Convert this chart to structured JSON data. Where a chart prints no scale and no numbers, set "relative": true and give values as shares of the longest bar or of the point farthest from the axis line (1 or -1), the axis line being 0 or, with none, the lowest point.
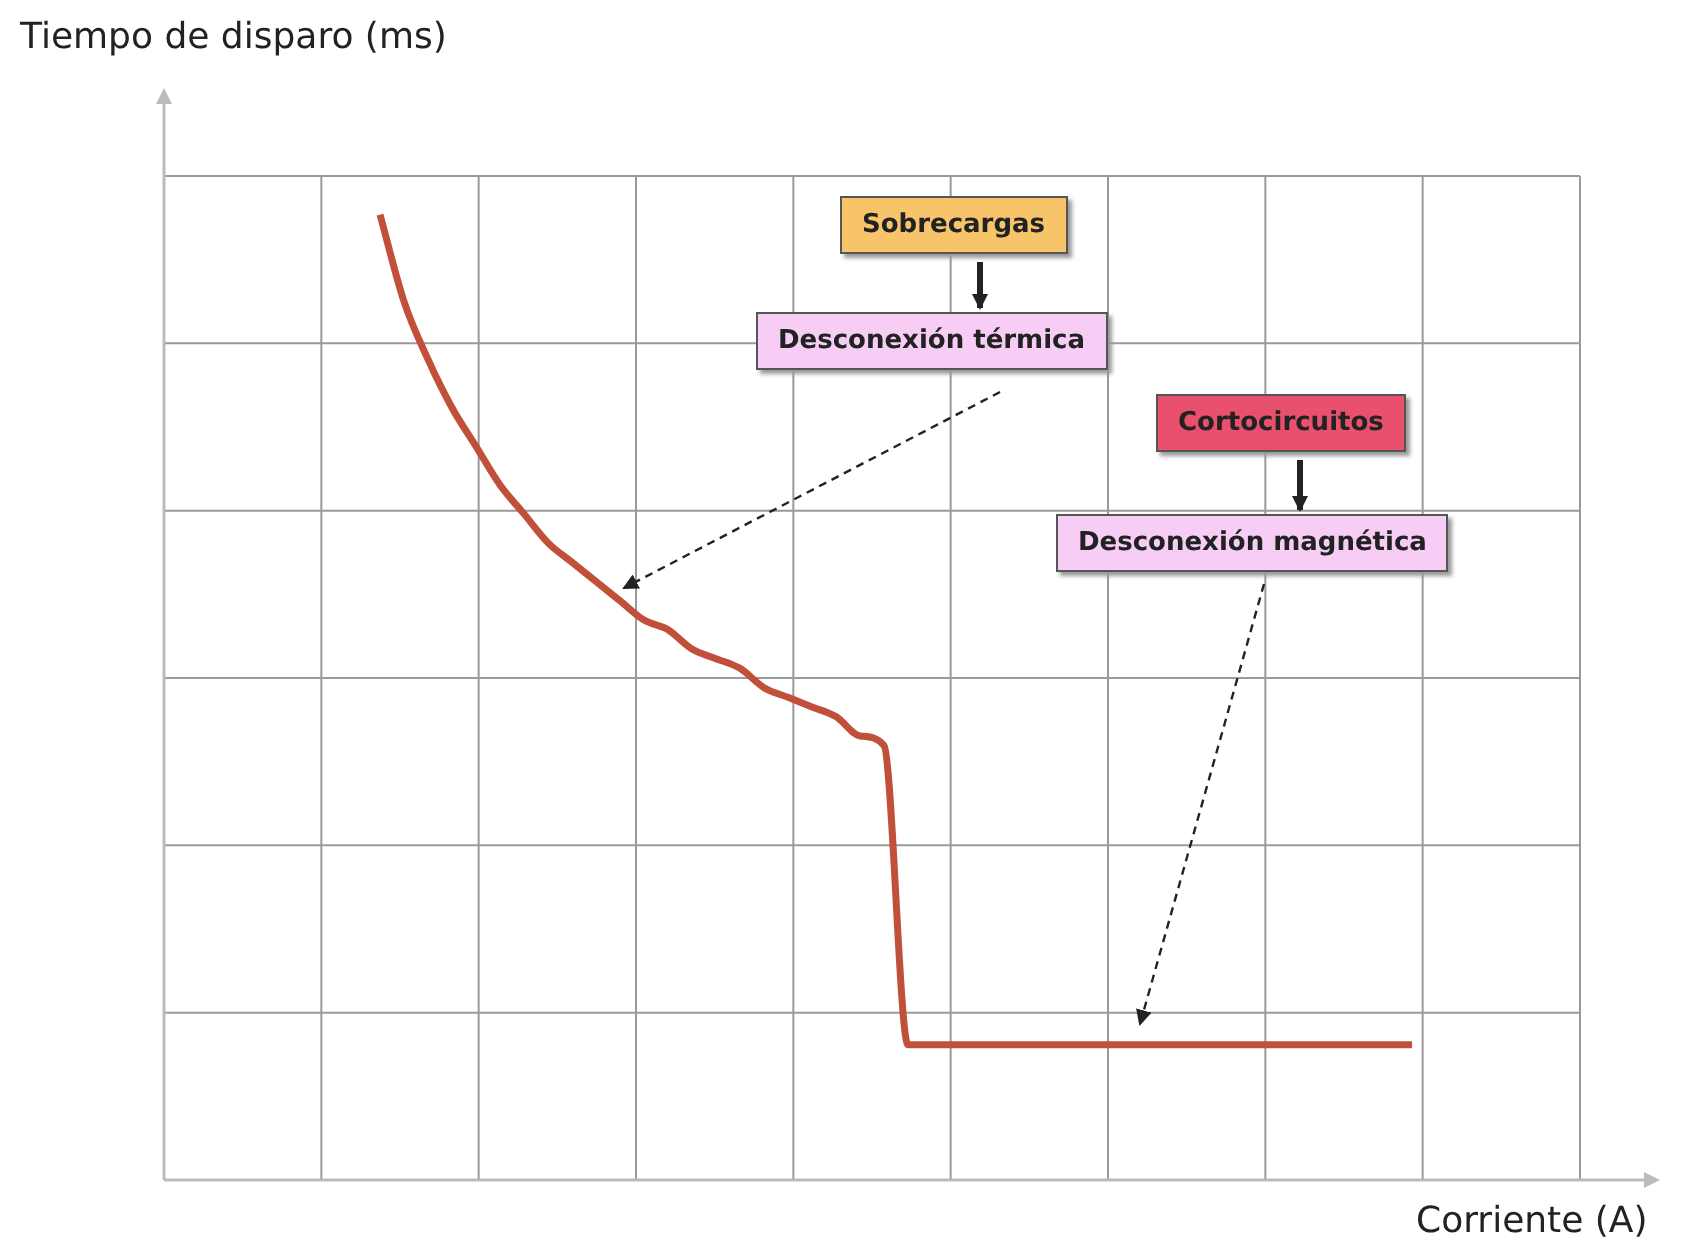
{
  "chart_data": {
    "type": "line",
    "xlabel": "Corriente (A)",
    "ylabel": "Tiempo de disparo (ms)",
    "relative": true,
    "grid": true,
    "categories": [
      null,
      null,
      null,
      null,
      null,
      null,
      null,
      null,
      null,
      null,
      null,
      null,
      null,
      null,
      null,
      null,
      null,
      null,
      null,
      null,
      null,
      null,
      null,
      null,
      null,
      null,
      null,
      null,
      null,
      null,
      null,
      null,
      null,
      null,
      null,
      null,
      null,
      null,
      null,
      null,
      null,
      null,
      null,
      null,
      null,
      null,
      null,
      null,
      null,
      null,
      null,
      null,
      null,
      null,
      null,
      null,
      null,
      null,
      null,
      null
    ],
    "series": [
      {
        "color": "#c0503a",
        "values": [
          null,
          null,
          null,
          null,
          null,
          null,
          null,
          null,
          null,
          1.0,
          0.91,
          0.85,
          0.8,
          0.76,
          0.72,
          0.69,
          0.66,
          0.64,
          0.62,
          0.6,
          0.58,
          0.57,
          0.55,
          0.54,
          0.53,
          0.51,
          0.5,
          0.49,
          0.48,
          0.46,
          0.45,
          0.14,
          0.14,
          0.14,
          0.14,
          0.14,
          0.14,
          0.14,
          0.14,
          0.14,
          0.14,
          0.14,
          0.14,
          0.14,
          0.14,
          0.14,
          0.14,
          0.14,
          0.14,
          0.14,
          0.14,
          0.14,
          0.14,
          null,
          null,
          null,
          null,
          null,
          null,
          null
        ]
      }
    ],
    "annotations": [
      "Sobrecargas",
      "Desconexión térmica",
      "Cortocircuitos",
      "Desconexión magnética"
    ]
  }
}
